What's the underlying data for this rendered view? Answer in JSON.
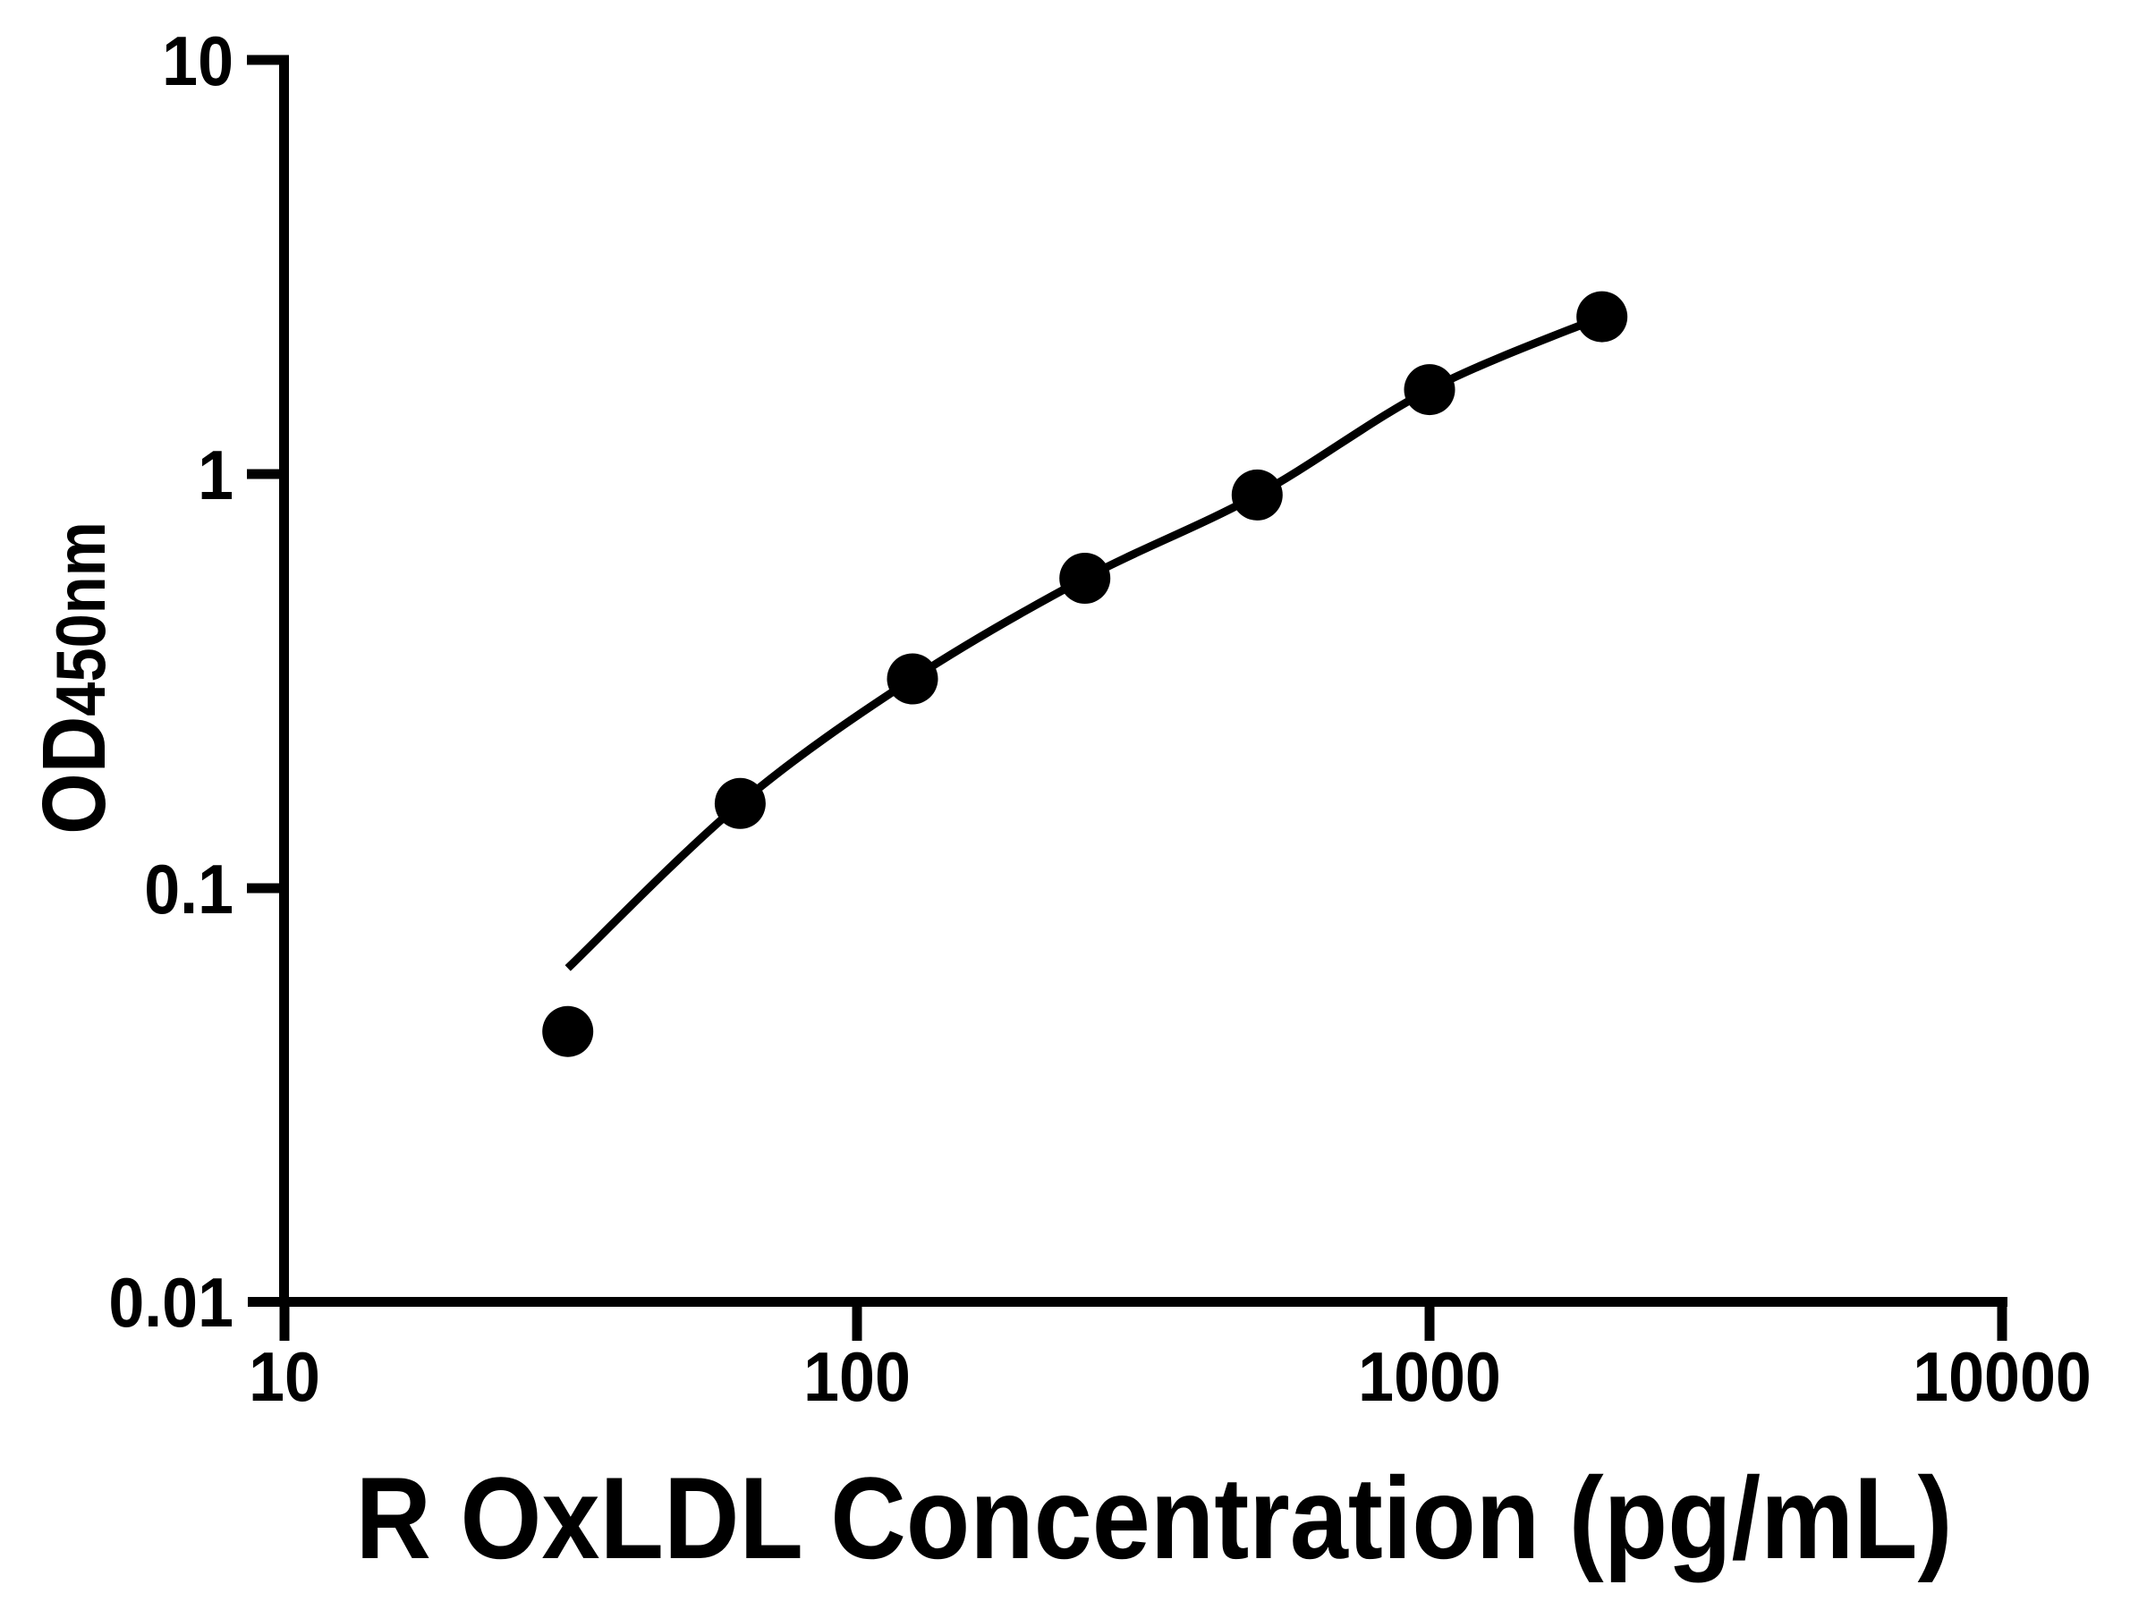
{
  "chart_data": {
    "type": "scatter",
    "title": "",
    "xlabel": "R OxLDL Concentration (pg/mL)",
    "ylabel_main": "OD",
    "ylabel_sub": "450nm",
    "x_scale": "log",
    "y_scale": "log",
    "xlim": [
      10,
      10000
    ],
    "ylim": [
      0.01,
      10
    ],
    "x_ticks": [
      10,
      100,
      1000,
      10000
    ],
    "y_ticks": [
      10,
      1,
      0.1,
      0.01
    ],
    "x_tick_labels": [
      "10",
      "100",
      "1000",
      "10000"
    ],
    "y_tick_labels": [
      "10",
      "1",
      "0.1",
      "0.01"
    ],
    "grid": false,
    "legend": false,
    "ink_color": "#000000",
    "background_color": "#ffffff",
    "series": [
      {
        "name": "standard curve points",
        "marker": "filled-circle",
        "color": "#000000",
        "x": [
          31.25,
          62.5,
          125,
          250,
          500,
          1000,
          2000
        ],
        "y": [
          0.045,
          0.16,
          0.32,
          0.56,
          0.89,
          1.6,
          2.4
        ]
      }
    ],
    "fit_curve": {
      "name": "4PL fit line",
      "color": "#000000",
      "x": [
        31.25,
        62.5,
        125,
        250,
        500,
        1000,
        2000
      ],
      "y": [
        0.064,
        0.16,
        0.32,
        0.56,
        0.89,
        1.6,
        2.4
      ]
    }
  }
}
